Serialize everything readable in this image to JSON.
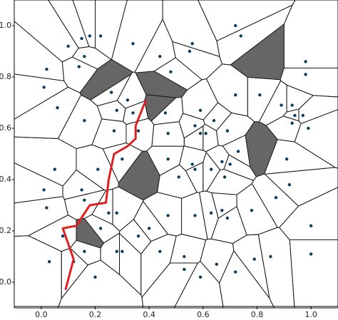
{
  "chart_data": {
    "type": "voronoi",
    "xlim": [
      -0.1,
      1.1
    ],
    "ylim": [
      -0.1,
      1.1
    ],
    "xticks": [
      {
        "value": 0,
        "label": "0.0"
      },
      {
        "value": 0.2,
        "label": "0.2"
      },
      {
        "value": 0.4,
        "label": "0.4"
      },
      {
        "value": 0.6,
        "label": "0.6"
      },
      {
        "value": 0.8,
        "label": "0.8"
      },
      {
        "value": 1,
        "label": "1.0"
      }
    ],
    "yticks": [
      {
        "value": 0,
        "label": "0.0"
      },
      {
        "value": 0.2,
        "label": "0.2"
      },
      {
        "value": 0.4,
        "label": "0.4"
      },
      {
        "value": 0.6,
        "label": "0.6"
      },
      {
        "value": 0.8,
        "label": "0.8"
      },
      {
        "value": 1,
        "label": "1.0"
      }
    ],
    "points": {
      "color": "#0b3d5c",
      "x": [
        0.1,
        0.15,
        0.18,
        0.22,
        0.34,
        0.44,
        0.56,
        0.55,
        0.72,
        0.74,
        0.98,
        0.98,
        0.02,
        0.01,
        0.16,
        0.14,
        0.48,
        0.32,
        0.28,
        0.34,
        0.16,
        0.06,
        0.27,
        0.36,
        0.47,
        0.46,
        0.59,
        0.59,
        0.61,
        0.64,
        0.57,
        0.72,
        0.81,
        0.93,
        0.89,
        0.94,
        0.93,
        0.97,
        0.99,
        0.69,
        0.73,
        0.91,
        0.05,
        0.21,
        0.3,
        0.47,
        0.51,
        0.57,
        0.63,
        0.67,
        0.68,
        0.7,
        0.56,
        0.01,
        0.02,
        0.15,
        0.16,
        0.25,
        0.28,
        0.36,
        0.4,
        0.47,
        0.57,
        0.63,
        0.67,
        0.69,
        0.78,
        0.87,
        0.92,
        1.0,
        0.16,
        0.28,
        0.3,
        0.22,
        0.03,
        0.12,
        0.2,
        0.44,
        0.53,
        0.53,
        0.59,
        0.65,
        0.72,
        0.79,
        0.85,
        1.0,
        0.08,
        0.26
      ],
      "y": [
        0.92,
        0.95,
        0.96,
        0.96,
        0.93,
        0.88,
        0.93,
        0.9,
        1.0,
        0.96,
        0.86,
        0.81,
        0.83,
        0.76,
        0.88,
        0.84,
        0.82,
        0.71,
        0.67,
        0.66,
        0.63,
        0.68,
        0.59,
        0.59,
        0.58,
        0.66,
        0.67,
        0.58,
        0.58,
        0.63,
        0.61,
        0.73,
        0.73,
        0.69,
        0.69,
        0.65,
        0.62,
        0.65,
        0.6,
        0.59,
        0.51,
        0.48,
        0.44,
        0.44,
        0.48,
        0.48,
        0.41,
        0.44,
        0.44,
        0.47,
        0.41,
        0.46,
        0.46,
        0.36,
        0.29,
        0.36,
        0.32,
        0.27,
        0.27,
        0.18,
        0.21,
        0.26,
        0.26,
        0.27,
        0.28,
        0.25,
        0.28,
        0.33,
        0.38,
        0.22,
        0.12,
        0.12,
        0.12,
        0.21,
        0.08,
        0.08,
        0.02,
        0.12,
        0.1,
        0.05,
        0.02,
        0.07,
        0.04,
        0.09,
        0.1,
        0.11,
        0.18,
        0.74
      ]
    },
    "shaded": {
      "color": "#666666",
      "x": [
        0.24,
        0.45,
        0.44,
        0.82,
        0.8,
        0.37,
        0.18
      ],
      "y": [
        0.77,
        0.77,
        0.68,
        0.86,
        0.52,
        0.43,
        0.18
      ]
    },
    "path": {
      "color": "#e02020",
      "x": [
        0.09,
        0.12,
        0.08,
        0.13,
        0.18,
        0.24,
        0.25,
        0.27,
        0.32,
        0.35,
        0.35,
        0.38,
        0.39
      ],
      "y": [
        -0.03,
        0.09,
        0.21,
        0.22,
        0.3,
        0.31,
        0.4,
        0.5,
        0.53,
        0.56,
        0.61,
        0.69,
        0.71
      ]
    }
  }
}
